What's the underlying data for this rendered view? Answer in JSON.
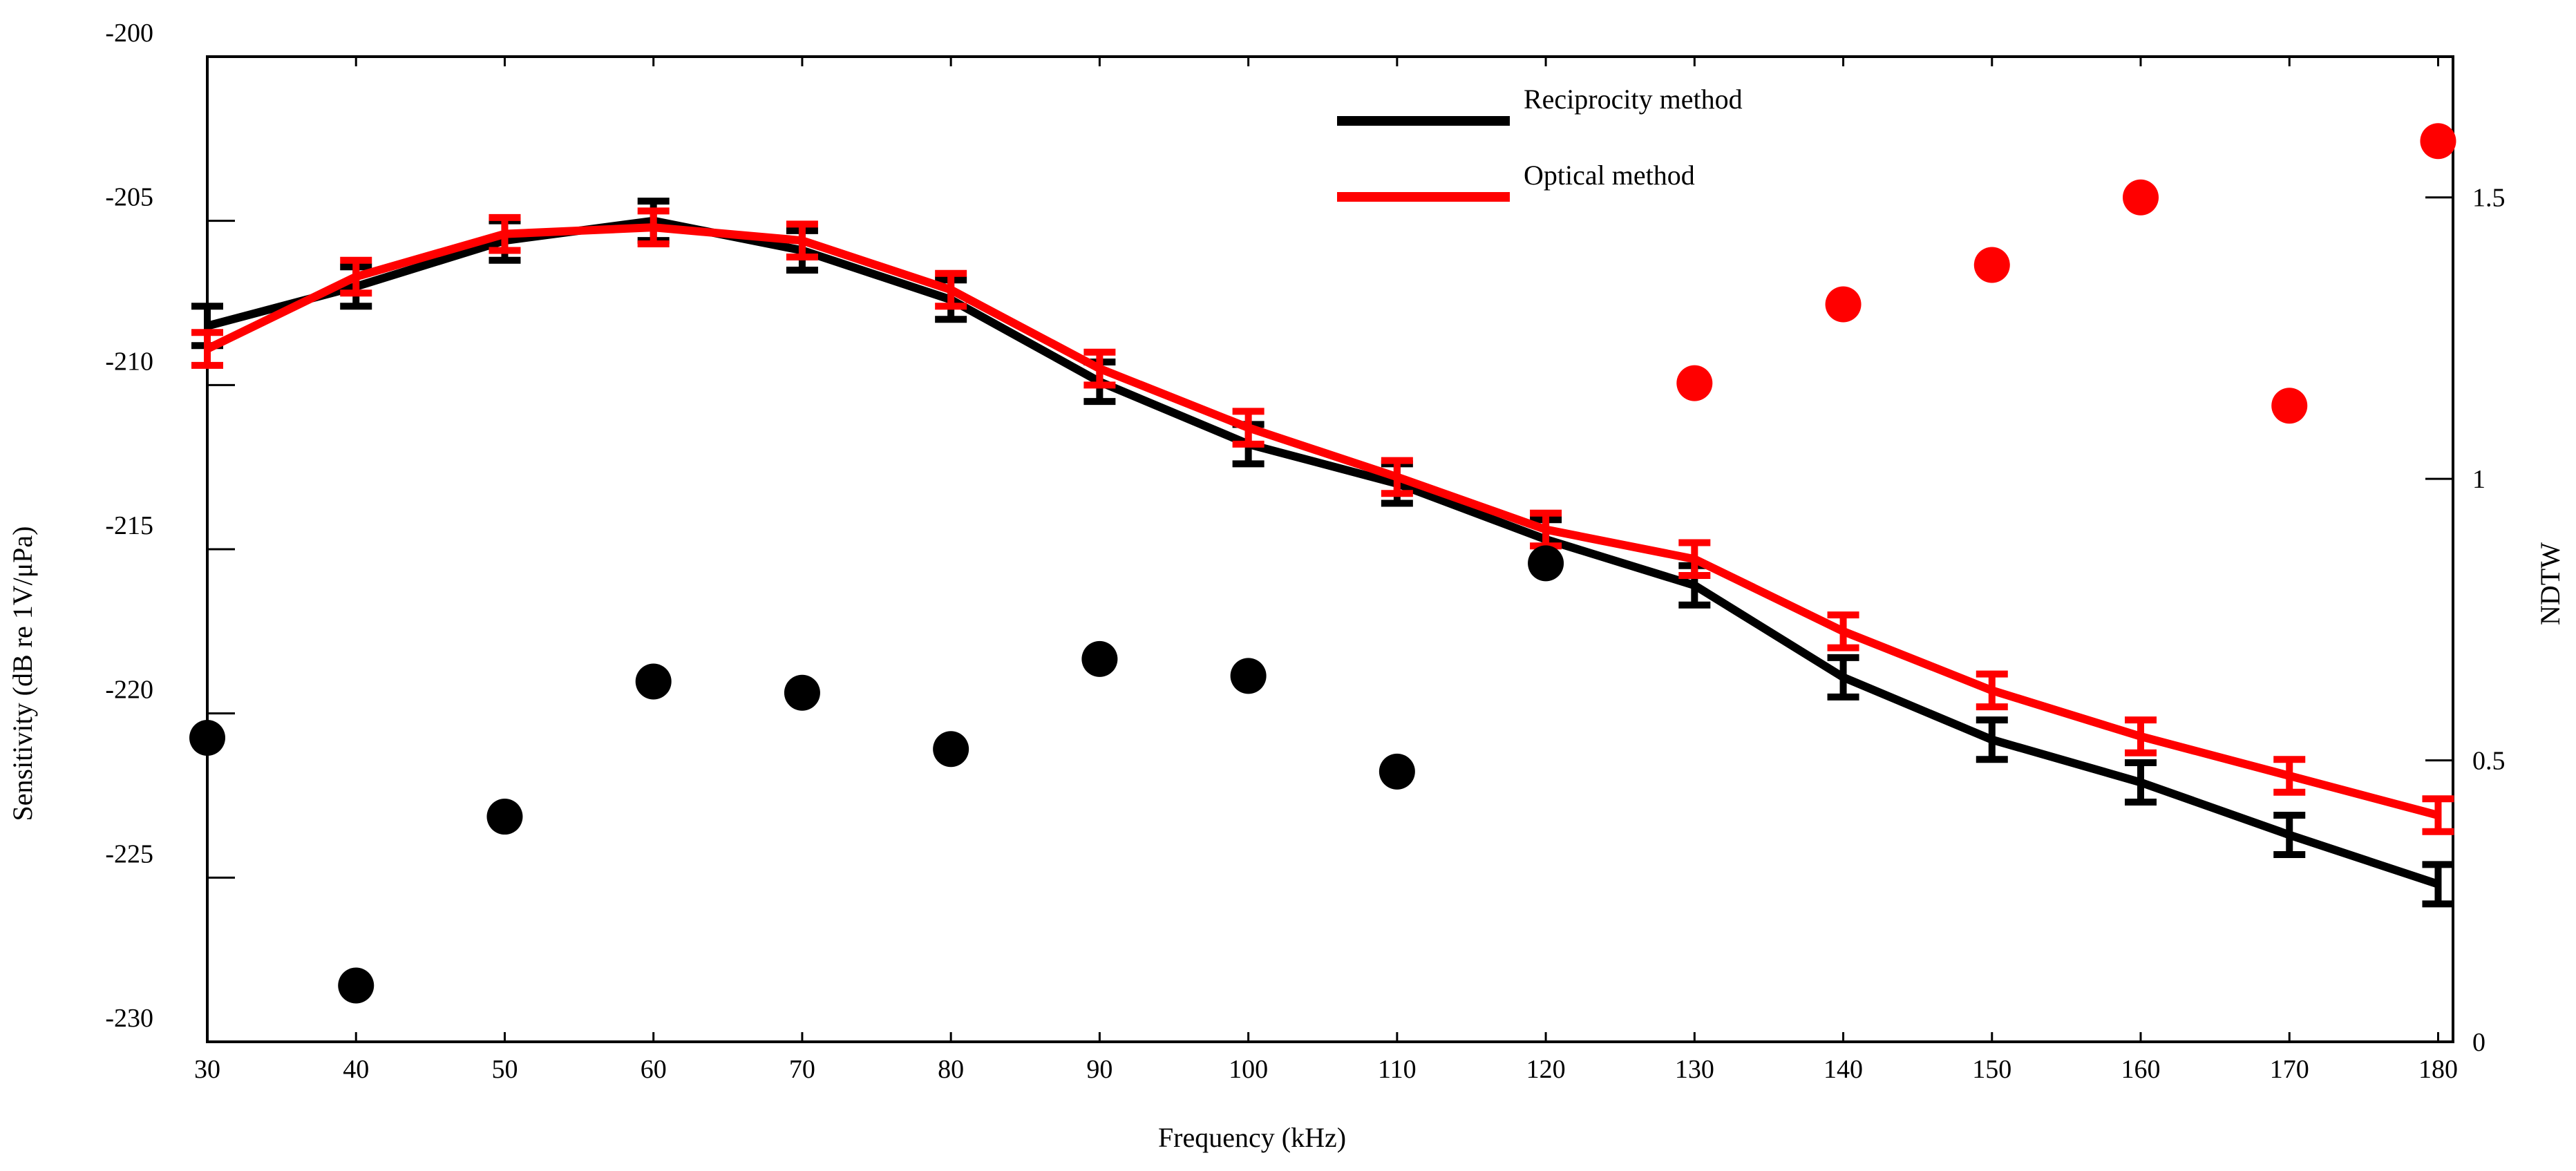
{
  "chart_data": {
    "type": "line",
    "title": "",
    "xlabel": "Frequency (kHz)",
    "ylabel": "Sensitivity (dB re 1V/μPa)",
    "y2label": "NDTW",
    "xlim": [
      30,
      181
    ],
    "ylim": [
      -230,
      -200
    ],
    "y2lim": [
      0,
      1.75
    ],
    "x_ticks": [
      30,
      40,
      50,
      60,
      70,
      80,
      90,
      100,
      110,
      120,
      130,
      140,
      150,
      160,
      170,
      180
    ],
    "y_ticks": [
      -230,
      -225,
      -220,
      -215,
      -210,
      -205,
      -200
    ],
    "y2_ticks": [
      0,
      0.5,
      1,
      1.5
    ],
    "x_tick_labels": [
      "30",
      "40",
      "50",
      "60",
      "70",
      "80",
      "90",
      "100",
      "110",
      "120",
      "130",
      "140",
      "150",
      "160",
      "170",
      "180"
    ],
    "y_tick_labels": [
      "-230",
      "-225",
      "-220",
      "-215",
      "-210",
      "-205",
      "-200"
    ],
    "y2_tick_labels": [
      "0",
      "0.5",
      "1",
      "1.5"
    ],
    "legend_position": "top-center",
    "series": [
      {
        "name": "Reciprocity method",
        "color": "#000000",
        "x": [
          30,
          40,
          50,
          60,
          70,
          80,
          90,
          100,
          110,
          120,
          130,
          140,
          150,
          160,
          170,
          180
        ],
        "values": [
          -208.2,
          -207.0,
          -205.6,
          -205.0,
          -205.9,
          -207.4,
          -209.9,
          -211.8,
          -213.0,
          -214.7,
          -216.1,
          -218.9,
          -220.8,
          -222.1,
          -223.7,
          -225.2
        ],
        "error": [
          0.6,
          0.6,
          0.6,
          0.6,
          0.6,
          0.6,
          0.6,
          0.6,
          0.6,
          0.6,
          0.6,
          0.6,
          0.6,
          0.6,
          0.6,
          0.6
        ]
      },
      {
        "name": "Optical method",
        "color": "#ff0000",
        "x": [
          30,
          40,
          50,
          60,
          70,
          80,
          90,
          100,
          110,
          120,
          130,
          140,
          150,
          160,
          170,
          180
        ],
        "values": [
          -208.9,
          -206.7,
          -205.4,
          -205.2,
          -205.6,
          -207.1,
          -209.5,
          -211.3,
          -212.8,
          -214.4,
          -215.3,
          -217.5,
          -219.3,
          -220.7,
          -221.9,
          -223.1
        ],
        "error": [
          0.5,
          0.5,
          0.5,
          0.5,
          0.5,
          0.5,
          0.5,
          0.5,
          0.5,
          0.5,
          0.5,
          0.5,
          0.5,
          0.5,
          0.5,
          0.5
        ]
      }
    ],
    "ndtw_points": {
      "axis": "right",
      "black": {
        "color": "#000000",
        "x": [
          30,
          40,
          50,
          60,
          70,
          80,
          90,
          100,
          110,
          120
        ],
        "values": [
          0.54,
          0.1,
          0.4,
          0.64,
          0.62,
          0.52,
          0.68,
          0.65,
          0.48,
          0.85
        ]
      },
      "red": {
        "color": "#ff0000",
        "x": [
          130,
          140,
          150,
          160,
          170,
          180
        ],
        "values": [
          1.17,
          1.31,
          1.38,
          1.5,
          1.13,
          1.6
        ]
      }
    }
  }
}
